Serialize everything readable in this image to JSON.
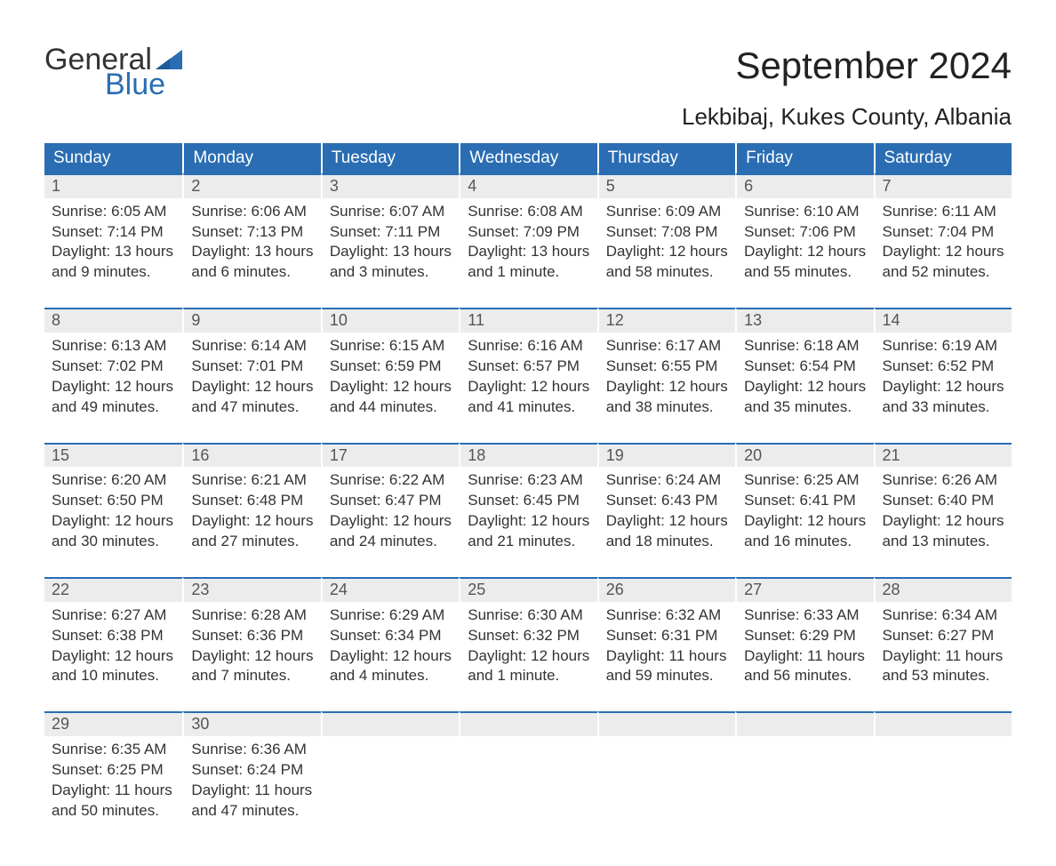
{
  "brand": {
    "line1": "General",
    "line2": "Blue",
    "text_color": "#333333",
    "accent_color": "#2a6db3"
  },
  "header": {
    "month_title": "September 2024",
    "location": "Lekbibaj, Kukes County, Albania",
    "title_fontsize": 42,
    "location_fontsize": 26
  },
  "calendar": {
    "header_bg": "#2a6db3",
    "header_text_color": "#ffffff",
    "daynum_bg": "#ececec",
    "week_top_border": "#2a6db3",
    "days_of_week": [
      "Sunday",
      "Monday",
      "Tuesday",
      "Wednesday",
      "Thursday",
      "Friday",
      "Saturday"
    ],
    "weeks": [
      [
        {
          "n": "1",
          "sunrise": "Sunrise: 6:05 AM",
          "sunset": "Sunset: 7:14 PM",
          "day1": "Daylight: 13 hours",
          "day2": "and 9 minutes."
        },
        {
          "n": "2",
          "sunrise": "Sunrise: 6:06 AM",
          "sunset": "Sunset: 7:13 PM",
          "day1": "Daylight: 13 hours",
          "day2": "and 6 minutes."
        },
        {
          "n": "3",
          "sunrise": "Sunrise: 6:07 AM",
          "sunset": "Sunset: 7:11 PM",
          "day1": "Daylight: 13 hours",
          "day2": "and 3 minutes."
        },
        {
          "n": "4",
          "sunrise": "Sunrise: 6:08 AM",
          "sunset": "Sunset: 7:09 PM",
          "day1": "Daylight: 13 hours",
          "day2": "and 1 minute."
        },
        {
          "n": "5",
          "sunrise": "Sunrise: 6:09 AM",
          "sunset": "Sunset: 7:08 PM",
          "day1": "Daylight: 12 hours",
          "day2": "and 58 minutes."
        },
        {
          "n": "6",
          "sunrise": "Sunrise: 6:10 AM",
          "sunset": "Sunset: 7:06 PM",
          "day1": "Daylight: 12 hours",
          "day2": "and 55 minutes."
        },
        {
          "n": "7",
          "sunrise": "Sunrise: 6:11 AM",
          "sunset": "Sunset: 7:04 PM",
          "day1": "Daylight: 12 hours",
          "day2": "and 52 minutes."
        }
      ],
      [
        {
          "n": "8",
          "sunrise": "Sunrise: 6:13 AM",
          "sunset": "Sunset: 7:02 PM",
          "day1": "Daylight: 12 hours",
          "day2": "and 49 minutes."
        },
        {
          "n": "9",
          "sunrise": "Sunrise: 6:14 AM",
          "sunset": "Sunset: 7:01 PM",
          "day1": "Daylight: 12 hours",
          "day2": "and 47 minutes."
        },
        {
          "n": "10",
          "sunrise": "Sunrise: 6:15 AM",
          "sunset": "Sunset: 6:59 PM",
          "day1": "Daylight: 12 hours",
          "day2": "and 44 minutes."
        },
        {
          "n": "11",
          "sunrise": "Sunrise: 6:16 AM",
          "sunset": "Sunset: 6:57 PM",
          "day1": "Daylight: 12 hours",
          "day2": "and 41 minutes."
        },
        {
          "n": "12",
          "sunrise": "Sunrise: 6:17 AM",
          "sunset": "Sunset: 6:55 PM",
          "day1": "Daylight: 12 hours",
          "day2": "and 38 minutes."
        },
        {
          "n": "13",
          "sunrise": "Sunrise: 6:18 AM",
          "sunset": "Sunset: 6:54 PM",
          "day1": "Daylight: 12 hours",
          "day2": "and 35 minutes."
        },
        {
          "n": "14",
          "sunrise": "Sunrise: 6:19 AM",
          "sunset": "Sunset: 6:52 PM",
          "day1": "Daylight: 12 hours",
          "day2": "and 33 minutes."
        }
      ],
      [
        {
          "n": "15",
          "sunrise": "Sunrise: 6:20 AM",
          "sunset": "Sunset: 6:50 PM",
          "day1": "Daylight: 12 hours",
          "day2": "and 30 minutes."
        },
        {
          "n": "16",
          "sunrise": "Sunrise: 6:21 AM",
          "sunset": "Sunset: 6:48 PM",
          "day1": "Daylight: 12 hours",
          "day2": "and 27 minutes."
        },
        {
          "n": "17",
          "sunrise": "Sunrise: 6:22 AM",
          "sunset": "Sunset: 6:47 PM",
          "day1": "Daylight: 12 hours",
          "day2": "and 24 minutes."
        },
        {
          "n": "18",
          "sunrise": "Sunrise: 6:23 AM",
          "sunset": "Sunset: 6:45 PM",
          "day1": "Daylight: 12 hours",
          "day2": "and 21 minutes."
        },
        {
          "n": "19",
          "sunrise": "Sunrise: 6:24 AM",
          "sunset": "Sunset: 6:43 PM",
          "day1": "Daylight: 12 hours",
          "day2": "and 18 minutes."
        },
        {
          "n": "20",
          "sunrise": "Sunrise: 6:25 AM",
          "sunset": "Sunset: 6:41 PM",
          "day1": "Daylight: 12 hours",
          "day2": "and 16 minutes."
        },
        {
          "n": "21",
          "sunrise": "Sunrise: 6:26 AM",
          "sunset": "Sunset: 6:40 PM",
          "day1": "Daylight: 12 hours",
          "day2": "and 13 minutes."
        }
      ],
      [
        {
          "n": "22",
          "sunrise": "Sunrise: 6:27 AM",
          "sunset": "Sunset: 6:38 PM",
          "day1": "Daylight: 12 hours",
          "day2": "and 10 minutes."
        },
        {
          "n": "23",
          "sunrise": "Sunrise: 6:28 AM",
          "sunset": "Sunset: 6:36 PM",
          "day1": "Daylight: 12 hours",
          "day2": "and 7 minutes."
        },
        {
          "n": "24",
          "sunrise": "Sunrise: 6:29 AM",
          "sunset": "Sunset: 6:34 PM",
          "day1": "Daylight: 12 hours",
          "day2": "and 4 minutes."
        },
        {
          "n": "25",
          "sunrise": "Sunrise: 6:30 AM",
          "sunset": "Sunset: 6:32 PM",
          "day1": "Daylight: 12 hours",
          "day2": "and 1 minute."
        },
        {
          "n": "26",
          "sunrise": "Sunrise: 6:32 AM",
          "sunset": "Sunset: 6:31 PM",
          "day1": "Daylight: 11 hours",
          "day2": "and 59 minutes."
        },
        {
          "n": "27",
          "sunrise": "Sunrise: 6:33 AM",
          "sunset": "Sunset: 6:29 PM",
          "day1": "Daylight: 11 hours",
          "day2": "and 56 minutes."
        },
        {
          "n": "28",
          "sunrise": "Sunrise: 6:34 AM",
          "sunset": "Sunset: 6:27 PM",
          "day1": "Daylight: 11 hours",
          "day2": "and 53 minutes."
        }
      ],
      [
        {
          "n": "29",
          "sunrise": "Sunrise: 6:35 AM",
          "sunset": "Sunset: 6:25 PM",
          "day1": "Daylight: 11 hours",
          "day2": "and 50 minutes."
        },
        {
          "n": "30",
          "sunrise": "Sunrise: 6:36 AM",
          "sunset": "Sunset: 6:24 PM",
          "day1": "Daylight: 11 hours",
          "day2": "and 47 minutes."
        },
        null,
        null,
        null,
        null,
        null
      ]
    ]
  }
}
